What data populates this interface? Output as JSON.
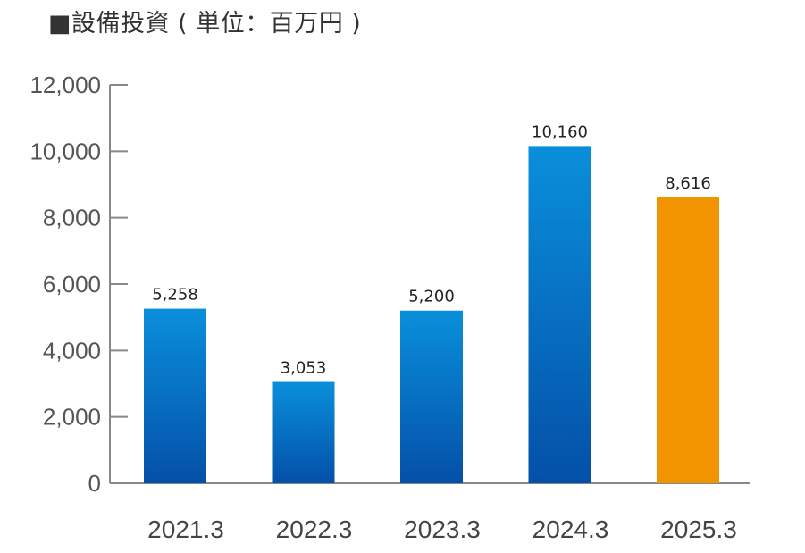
{
  "chart_data": {
    "type": "bar",
    "title": "■設備投資 ( 単位：百万円 )",
    "categories": [
      "2021.3",
      "2022.3",
      "2023.3",
      "2024.3",
      "2025.3"
    ],
    "values": [
      5258,
      3053,
      5200,
      10160,
      8616
    ],
    "value_labels": [
      "5,258",
      "3,053",
      "5,200",
      "10,160",
      "8,616"
    ],
    "yticks": [
      0,
      2000,
      4000,
      6000,
      8000,
      10000,
      12000
    ],
    "ytick_labels": [
      "0",
      "2,000",
      "4,000",
      "6,000",
      "8,000",
      "10,000",
      "12,000"
    ],
    "ylim": [
      0,
      12000
    ],
    "grid": false,
    "legend": "none",
    "colors": {
      "bar_top": "#0a8fdb",
      "bar_bottom": "#0450a8",
      "highlight": "#f29400",
      "axis": "#888888"
    },
    "highlight_index": 4
  }
}
